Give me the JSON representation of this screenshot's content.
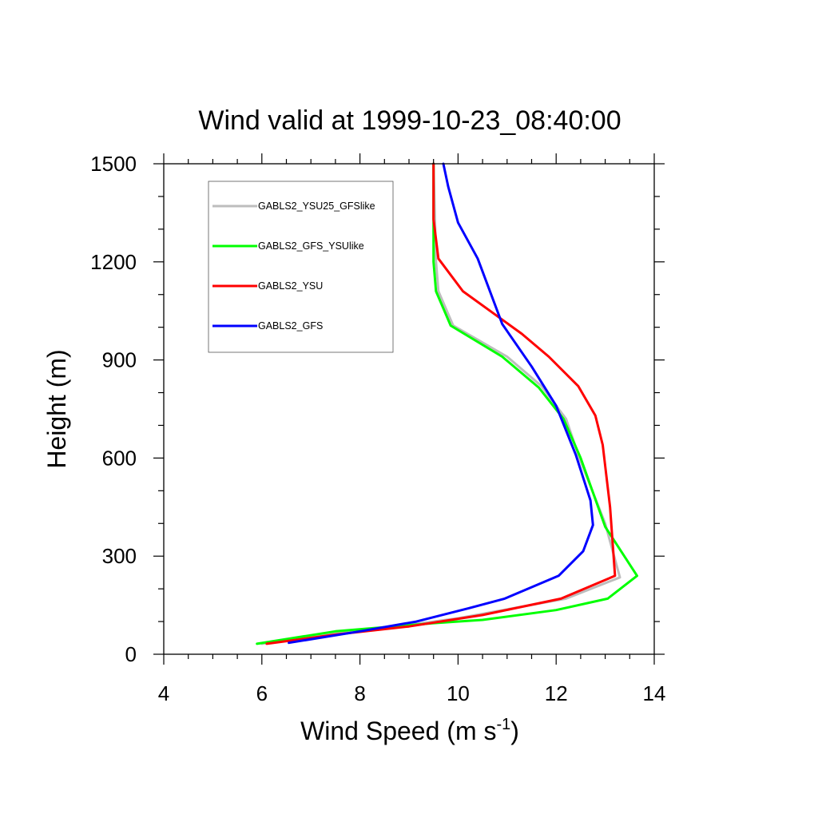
{
  "chart_data": {
    "type": "line",
    "title": "Wind valid at 1999-10-23_08:40:00",
    "xlabel": "Wind Speed (m s",
    "xlabel_sup": "-1",
    "xlabel_end": ")",
    "ylabel": "Height (m)",
    "xlim": [
      4,
      14
    ],
    "ylim": [
      0,
      1500
    ],
    "xticks": [
      4,
      6,
      8,
      10,
      12,
      14
    ],
    "yticks": [
      0,
      300,
      600,
      900,
      1200,
      1500
    ],
    "grid": false,
    "legend_position": "top-left",
    "series": [
      {
        "name": "GABLS2_YSU25_GFSlike",
        "color": "#bdbdbd",
        "points": [
          [
            6.0,
            32
          ],
          [
            7.0,
            55
          ],
          [
            8.5,
            80
          ],
          [
            10.0,
            110
          ],
          [
            12.2,
            170
          ],
          [
            13.3,
            235
          ],
          [
            13.0,
            400
          ],
          [
            12.5,
            590
          ],
          [
            12.2,
            720
          ],
          [
            11.7,
            820
          ],
          [
            11.0,
            910
          ],
          [
            9.9,
            1005
          ],
          [
            9.6,
            1110
          ],
          [
            9.55,
            1200
          ],
          [
            9.5,
            1500
          ]
        ]
      },
      {
        "name": "GABLS2_GFS_YSUlike",
        "color": "#00ff00",
        "points": [
          [
            5.9,
            32
          ],
          [
            7.5,
            70
          ],
          [
            9.5,
            95
          ],
          [
            10.5,
            105
          ],
          [
            12.0,
            135
          ],
          [
            13.05,
            170
          ],
          [
            13.65,
            240
          ],
          [
            13.0,
            390
          ],
          [
            12.5,
            600
          ],
          [
            12.15,
            720
          ],
          [
            11.65,
            815
          ],
          [
            10.9,
            910
          ],
          [
            9.85,
            1005
          ],
          [
            9.55,
            1110
          ],
          [
            9.5,
            1200
          ],
          [
            9.5,
            1500
          ]
        ]
      },
      {
        "name": "GABLS2_YSU",
        "color": "#ff0000",
        "points": [
          [
            6.1,
            32
          ],
          [
            7.5,
            60
          ],
          [
            9.0,
            85
          ],
          [
            10.5,
            120
          ],
          [
            12.1,
            170
          ],
          [
            13.2,
            240
          ],
          [
            13.1,
            450
          ],
          [
            12.95,
            640
          ],
          [
            12.8,
            730
          ],
          [
            12.45,
            820
          ],
          [
            11.85,
            910
          ],
          [
            11.3,
            980
          ],
          [
            10.1,
            1110
          ],
          [
            9.6,
            1210
          ],
          [
            9.5,
            1330
          ],
          [
            9.5,
            1500
          ]
        ]
      },
      {
        "name": "GABLS2_GFS",
        "color": "#0000ff",
        "points": [
          [
            6.55,
            35
          ],
          [
            8.0,
            70
          ],
          [
            9.15,
            100
          ],
          [
            10.2,
            140
          ],
          [
            10.95,
            170
          ],
          [
            12.05,
            240
          ],
          [
            12.55,
            315
          ],
          [
            12.75,
            395
          ],
          [
            12.7,
            470
          ],
          [
            12.4,
            610
          ],
          [
            12.0,
            760
          ],
          [
            11.5,
            880
          ],
          [
            10.9,
            1010
          ],
          [
            10.4,
            1210
          ],
          [
            10.0,
            1320
          ],
          [
            9.8,
            1430
          ],
          [
            9.7,
            1500
          ]
        ]
      }
    ]
  }
}
